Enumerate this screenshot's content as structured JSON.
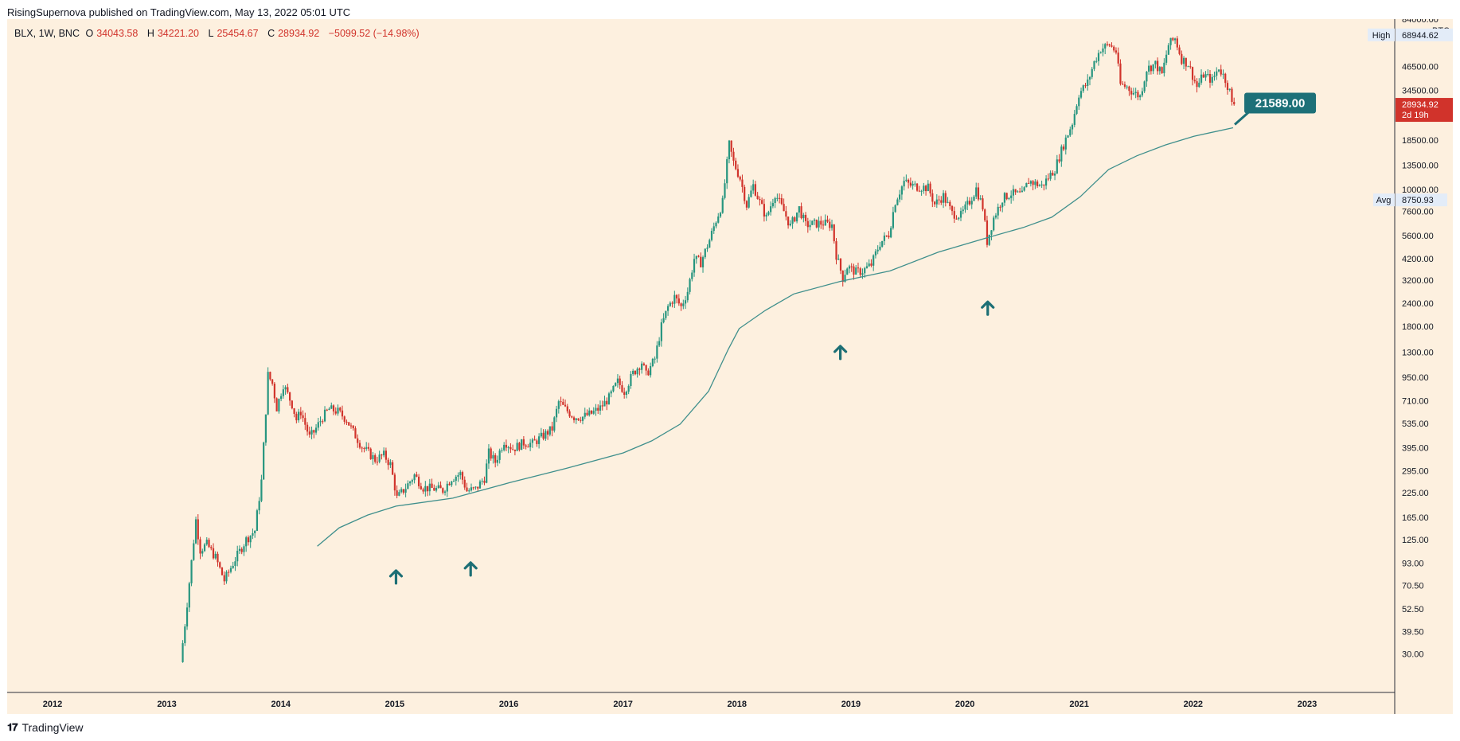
{
  "header": {
    "publish_line": "RisingSupernova published on TradingView.com, May 13, 2022 05:01 UTC"
  },
  "legend": {
    "symbol": "BLX, 1W, BNC",
    "open_label": "O",
    "open": "34043.58",
    "high_label": "H",
    "high": "34221.20",
    "low_label": "L",
    "low": "25454.67",
    "close_label": "C",
    "close": "28934.92",
    "change": "−5099.52 (−14.98%)"
  },
  "price_axis": {
    "currency": "BTC",
    "high_label": "High",
    "high_value": "68944.62",
    "avg_label": "Avg",
    "avg_value": "8750.93",
    "last_value": "28934.92",
    "countdown": "2d 19h"
  },
  "annotation": {
    "callout": "21589.00"
  },
  "footer": {
    "brand": "TradingView"
  },
  "colors": {
    "background": "#fdf0df",
    "up": "#26957f",
    "down": "#d1332b",
    "ma_line": "#3f8f8c",
    "arrow": "#1d6f75",
    "callout": "#1d7078"
  },
  "chart_data": {
    "type": "candlestick",
    "title": "BLX, 1W, BNC",
    "y_scale": "log",
    "ylim": [
      25,
      84000
    ],
    "xlim": [
      "2012-01-01",
      "2023-01-01"
    ],
    "y_ticks": [
      "84000.00",
      "46500.00",
      "34500.00",
      "18500.00",
      "13500.00",
      "10000.00",
      "7600.00",
      "5600.00",
      "4200.00",
      "3200.00",
      "2400.00",
      "1800.00",
      "1300.00",
      "950.00",
      "710.00",
      "535.00",
      "395.00",
      "295.00",
      "225.00",
      "165.00",
      "125.00",
      "93.00",
      "70.50",
      "52.50",
      "39.50",
      "30.00"
    ],
    "x_ticks": [
      "2012",
      "2013",
      "2014",
      "2015",
      "2016",
      "2017",
      "2018",
      "2019",
      "2020",
      "2021",
      "2022",
      "2023"
    ],
    "price_path": [
      [
        "2013-02-18",
        27
      ],
      [
        "2013-03-05",
        45
      ],
      [
        "2013-03-25",
        95
      ],
      [
        "2013-04-08",
        160
      ],
      [
        "2013-04-22",
        110
      ],
      [
        "2013-05-13",
        118
      ],
      [
        "2013-06-10",
        100
      ],
      [
        "2013-07-08",
        75
      ],
      [
        "2013-08-12",
        98
      ],
      [
        "2013-09-16",
        125
      ],
      [
        "2013-10-14",
        140
      ],
      [
        "2013-11-04",
        260
      ],
      [
        "2013-11-25",
        980
      ],
      [
        "2013-12-09",
        880
      ],
      [
        "2013-12-23",
        650
      ],
      [
        "2014-01-13",
        870
      ],
      [
        "2014-02-10",
        680
      ],
      [
        "2014-02-24",
        560
      ],
      [
        "2014-03-10",
        620
      ],
      [
        "2014-04-07",
        450
      ],
      [
        "2014-04-21",
        480
      ],
      [
        "2014-05-19",
        580
      ],
      [
        "2014-06-09",
        640
      ],
      [
        "2014-07-07",
        620
      ],
      [
        "2014-08-04",
        560
      ],
      [
        "2014-08-25",
        480
      ],
      [
        "2014-09-22",
        400
      ],
      [
        "2014-10-13",
        370
      ],
      [
        "2014-11-03",
        340
      ],
      [
        "2014-12-01",
        360
      ],
      [
        "2014-12-22",
        320
      ],
      [
        "2015-01-12",
        210
      ],
      [
        "2015-02-09",
        240
      ],
      [
        "2015-03-09",
        280
      ],
      [
        "2015-04-06",
        240
      ],
      [
        "2015-05-11",
        236
      ],
      [
        "2015-06-08",
        232
      ],
      [
        "2015-07-06",
        270
      ],
      [
        "2015-08-03",
        285
      ],
      [
        "2015-08-24",
        230
      ],
      [
        "2015-09-21",
        235
      ],
      [
        "2015-10-19",
        270
      ],
      [
        "2015-11-02",
        370
      ],
      [
        "2015-11-23",
        330
      ],
      [
        "2015-12-21",
        430
      ],
      [
        "2016-01-18",
        390
      ],
      [
        "2016-02-22",
        420
      ],
      [
        "2016-03-21",
        415
      ],
      [
        "2016-04-18",
        450
      ],
      [
        "2016-05-23",
        500
      ],
      [
        "2016-06-13",
        700
      ],
      [
        "2016-07-04",
        640
      ],
      [
        "2016-08-01",
        580
      ],
      [
        "2016-08-29",
        580
      ],
      [
        "2016-09-26",
        605
      ],
      [
        "2016-10-24",
        650
      ],
      [
        "2016-11-21",
        735
      ],
      [
        "2016-12-19",
        900
      ],
      [
        "2017-01-09",
        800
      ],
      [
        "2017-02-06",
        1000
      ],
      [
        "2017-03-06",
        1150
      ],
      [
        "2017-03-20",
        980
      ],
      [
        "2017-04-17",
        1200
      ],
      [
        "2017-05-08",
        1800
      ],
      [
        "2017-05-29",
        2300
      ],
      [
        "2017-06-19",
        2600
      ],
      [
        "2017-07-10",
        2300
      ],
      [
        "2017-07-31",
        2800
      ],
      [
        "2017-08-21",
        4200
      ],
      [
        "2017-09-11",
        4000
      ],
      [
        "2017-10-09",
        5300
      ],
      [
        "2017-10-30",
        6800
      ],
      [
        "2017-11-20",
        8500
      ],
      [
        "2017-12-11",
        17500
      ],
      [
        "2017-12-25",
        14000
      ],
      [
        "2018-01-15",
        11500
      ],
      [
        "2018-02-05",
        8200
      ],
      [
        "2018-02-26",
        10500
      ],
      [
        "2018-03-19",
        8500
      ],
      [
        "2018-04-09",
        7000
      ],
      [
        "2018-05-07",
        9500
      ],
      [
        "2018-06-04",
        7600
      ],
      [
        "2018-06-25",
        6300
      ],
      [
        "2018-07-23",
        7900
      ],
      [
        "2018-08-13",
        6400
      ],
      [
        "2018-09-10",
        6500
      ],
      [
        "2018-10-08",
        6550
      ],
      [
        "2018-11-05",
        6400
      ],
      [
        "2018-11-19",
        4400
      ],
      [
        "2018-12-10",
        3300
      ],
      [
        "2018-12-24",
        3800
      ],
      [
        "2019-01-21",
        3550
      ],
      [
        "2019-02-11",
        3600
      ],
      [
        "2019-03-11",
        3900
      ],
      [
        "2019-04-08",
        5100
      ],
      [
        "2019-05-06",
        5700
      ],
      [
        "2019-05-27",
        8600
      ],
      [
        "2019-06-24",
        11000
      ],
      [
        "2019-07-15",
        10500
      ],
      [
        "2019-08-12",
        10300
      ],
      [
        "2019-09-09",
        10200
      ],
      [
        "2019-09-30",
        8300
      ],
      [
        "2019-10-28",
        9200
      ],
      [
        "2019-11-25",
        7400
      ],
      [
        "2019-12-23",
        7200
      ],
      [
        "2020-01-20",
        8600
      ],
      [
        "2020-02-10",
        10100
      ],
      [
        "2020-03-02",
        8000
      ],
      [
        "2020-03-16",
        5200
      ],
      [
        "2020-04-06",
        7000
      ],
      [
        "2020-05-04",
        8900
      ],
      [
        "2020-06-01",
        9500
      ],
      [
        "2020-07-06",
        9300
      ],
      [
        "2020-07-27",
        11100
      ],
      [
        "2020-09-07",
        10400
      ],
      [
        "2020-10-19",
        12900
      ],
      [
        "2020-11-16",
        17500
      ],
      [
        "2020-12-14",
        23000
      ],
      [
        "2021-01-04",
        33000
      ],
      [
        "2021-02-01",
        38000
      ],
      [
        "2021-02-22",
        49000
      ],
      [
        "2021-03-15",
        58000
      ],
      [
        "2021-04-12",
        61000
      ],
      [
        "2021-05-03",
        56000
      ],
      [
        "2021-05-17",
        37000
      ],
      [
        "2021-06-07",
        36000
      ],
      [
        "2021-06-28",
        33500
      ],
      [
        "2021-07-19",
        32000
      ],
      [
        "2021-08-09",
        45000
      ],
      [
        "2021-09-06",
        48000
      ],
      [
        "2021-09-27",
        42000
      ],
      [
        "2021-10-18",
        61000
      ],
      [
        "2021-11-08",
        66000
      ],
      [
        "2021-11-29",
        51000
      ],
      [
        "2021-12-20",
        48000
      ],
      [
        "2022-01-17",
        36000
      ],
      [
        "2022-02-07",
        42000
      ],
      [
        "2022-03-07",
        39000
      ],
      [
        "2022-03-28",
        46000
      ],
      [
        "2022-04-18",
        39500
      ],
      [
        "2022-05-02",
        34000
      ],
      [
        "2022-05-09",
        28934.92
      ]
    ],
    "moving_average": [
      [
        "2014-04-28",
        115
      ],
      [
        "2014-07-07",
        145
      ],
      [
        "2014-10-06",
        170
      ],
      [
        "2015-01-05",
        190
      ],
      [
        "2015-07-06",
        210
      ],
      [
        "2016-01-04",
        255
      ],
      [
        "2016-07-04",
        305
      ],
      [
        "2017-01-02",
        370
      ],
      [
        "2017-04-03",
        430
      ],
      [
        "2017-07-03",
        530
      ],
      [
        "2017-10-02",
        800
      ],
      [
        "2017-12-04",
        1350
      ],
      [
        "2018-01-08",
        1750
      ],
      [
        "2018-04-02",
        2200
      ],
      [
        "2018-07-02",
        2700
      ],
      [
        "2018-11-26",
        3150
      ],
      [
        "2019-05-06",
        3600
      ],
      [
        "2019-10-07",
        4550
      ],
      [
        "2020-03-16",
        5480
      ],
      [
        "2020-07-06",
        6200
      ],
      [
        "2020-10-05",
        7050
      ],
      [
        "2021-01-04",
        9100
      ],
      [
        "2021-04-05",
        12800
      ],
      [
        "2021-07-05",
        15200
      ],
      [
        "2021-10-04",
        17400
      ],
      [
        "2022-01-03",
        19400
      ],
      [
        "2022-05-09",
        21589
      ]
    ],
    "arrows": [
      "2015-01-05",
      "2015-09-01",
      "2018-11-28",
      "2020-03-14"
    ]
  }
}
